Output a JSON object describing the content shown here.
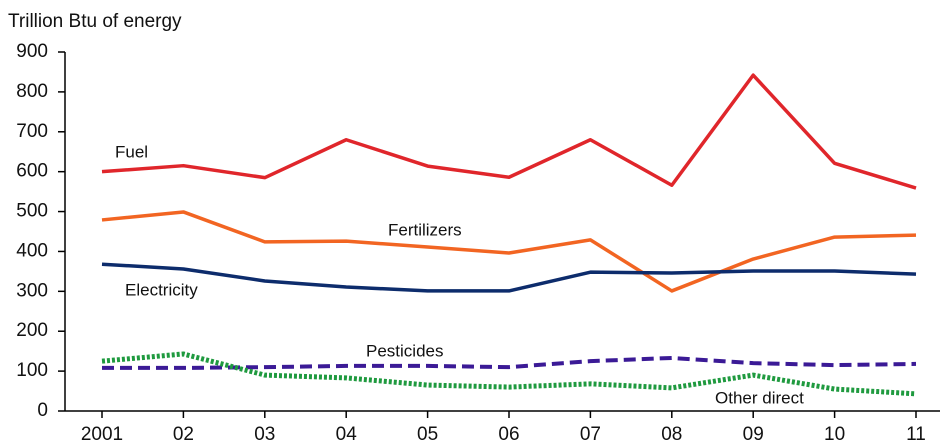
{
  "chart_data": {
    "type": "line",
    "title": "Trillion Btu of energy",
    "categories": [
      "2001",
      "02",
      "03",
      "04",
      "05",
      "06",
      "07",
      "08",
      "09",
      "10",
      "11"
    ],
    "series": [
      {
        "name": "Fuel",
        "color": "#e0262b",
        "dash": "solid",
        "values": [
          600,
          615,
          585,
          680,
          614,
          586,
          680,
          566,
          842,
          621,
          559
        ]
      },
      {
        "name": "Fertilizers",
        "color": "#f26522",
        "dash": "solid",
        "values": [
          479,
          499,
          424,
          426,
          411,
          396,
          429,
          301,
          381,
          436,
          441
        ]
      },
      {
        "name": "Electricity",
        "color": "#0d2c6c",
        "dash": "solid",
        "values": [
          368,
          356,
          326,
          311,
          301,
          301,
          348,
          346,
          351,
          351,
          343
        ]
      },
      {
        "name": "Pesticides",
        "color": "#3b1a96",
        "dash": "dashed",
        "values": [
          108,
          108,
          110,
          113,
          113,
          110,
          125,
          133,
          120,
          115,
          118
        ]
      },
      {
        "name": "Other direct",
        "color": "#1f9a3f",
        "dash": "dotted",
        "values": [
          125,
          143,
          90,
          83,
          65,
          60,
          68,
          58,
          90,
          55,
          43
        ]
      }
    ],
    "ylim": [
      0,
      900
    ],
    "yticks": [
      0,
      100,
      200,
      300,
      400,
      500,
      600,
      700,
      800,
      900
    ]
  }
}
